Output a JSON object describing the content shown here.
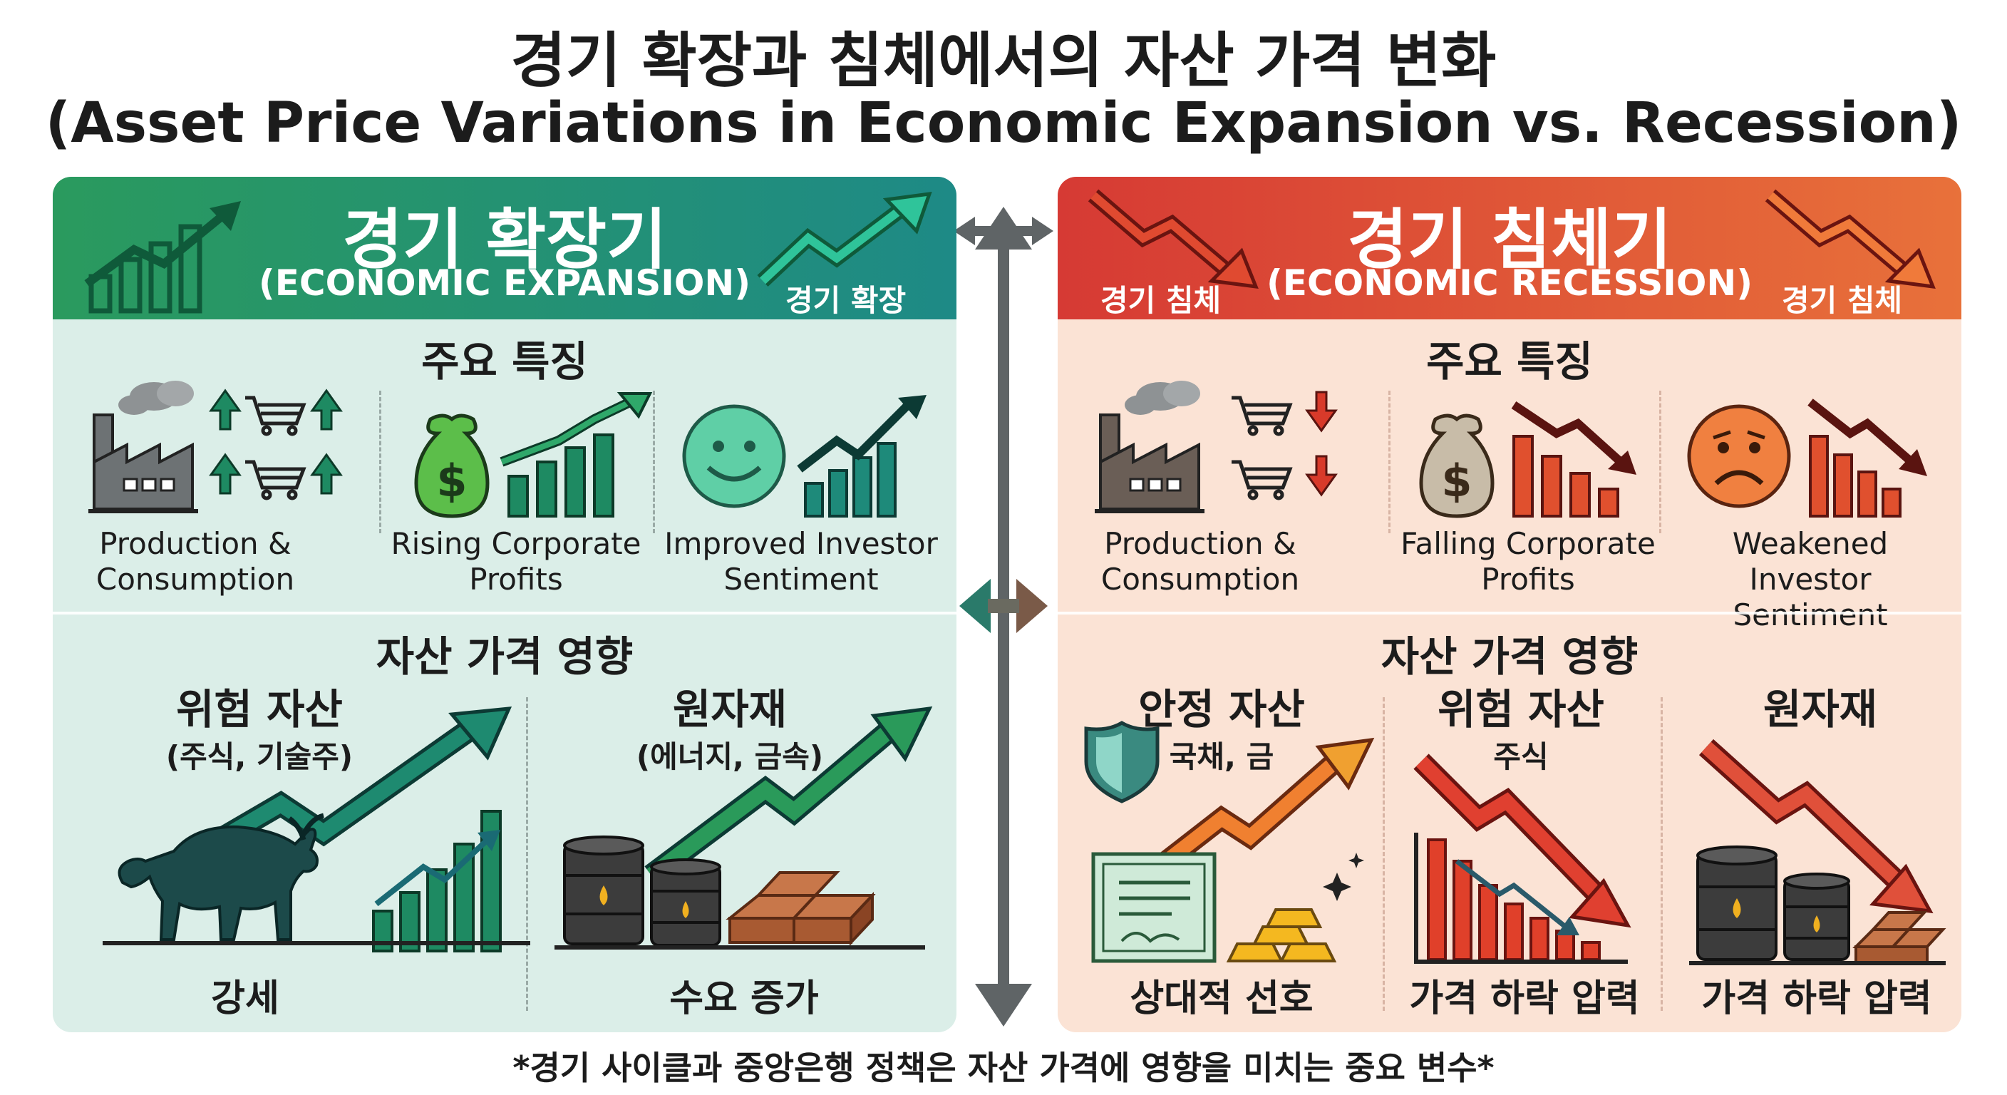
{
  "title": {
    "korean": "경기 확장과 침체에서의 자산 가격 변화",
    "english": "(Asset Price Variations in Economic Expansion vs. Recession)"
  },
  "expansion": {
    "header_title": "경기 확장기",
    "header_subtitle": "(ECONOMIC EXPANSION)",
    "header_tag": "경기 확장",
    "features_title": "주요 특징",
    "features": [
      {
        "label": "Production & Consumption",
        "icon": "factory-cart-up-icon"
      },
      {
        "label": "Rising Corporate Profits",
        "icon": "money-bag-chart-up-icon"
      },
      {
        "label": "Improved Investor Sentiment",
        "icon": "smile-chart-up-icon"
      }
    ],
    "impact_title": "자산 가격 영향",
    "assets": [
      {
        "title": "위험 자산",
        "subtitle": "(주식, 기술주)",
        "bottom": "강세",
        "icon": "bull-chart-up-icon"
      },
      {
        "title": "원자재",
        "subtitle": "(에너지, 금속)",
        "bottom": "수요 증가",
        "icon": "oil-barrels-copper-icon"
      }
    ],
    "color": "#1e8a86"
  },
  "recession": {
    "header_title": "경기 침체기",
    "header_subtitle": "(ECONOMIC RECESSION)",
    "header_tag_left": "경기 침체",
    "header_tag_right": "경기 침체",
    "features_title": "주요 특징",
    "features": [
      {
        "label": "Production & Consumption",
        "icon": "factory-cart-down-icon"
      },
      {
        "label": "Falling Corporate Profits",
        "icon": "money-bag-chart-down-icon"
      },
      {
        "label": "Weakened Investor Sentiment",
        "icon": "sad-chart-down-icon"
      }
    ],
    "impact_title": "자산 가격 영향",
    "assets": [
      {
        "title": "안정 자산",
        "subtitle": "국채, 금",
        "bottom": "상대적 선호",
        "icon": "shield-bond-gold-icon"
      },
      {
        "title": "위험 자산",
        "subtitle": "주식",
        "bottom": "가격 하락 압력",
        "icon": "chart-down-icon"
      },
      {
        "title": "원자재",
        "subtitle": "",
        "bottom": "가격 하락 압력",
        "icon": "oil-barrels-down-icon"
      }
    ],
    "color": "#d63a34"
  },
  "footnote": "*경기 사이클과 중앙은행 정책은 자산 가격에 영향을 미치는 중요 변수*"
}
